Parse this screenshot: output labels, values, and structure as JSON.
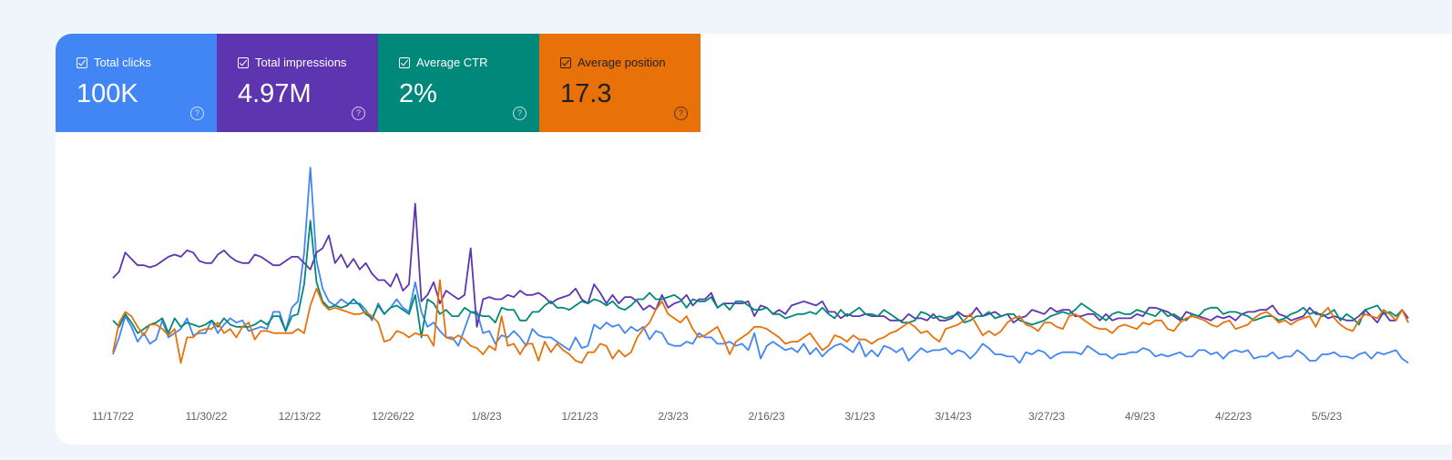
{
  "metrics": [
    {
      "label": "Total clicks",
      "value": "100K",
      "color": "#4285f4",
      "text_color": "#ffffff",
      "icon": "checkbox-checked-icon",
      "help_icon": "help-circle-icon",
      "help_glyph": "?"
    },
    {
      "label": "Total impressions",
      "value": "4.97M",
      "color": "#5e35b1",
      "text_color": "#ffffff",
      "icon": "checkbox-checked-icon",
      "help_icon": "help-circle-icon",
      "help_glyph": "?"
    },
    {
      "label": "Average CTR",
      "value": "2%",
      "color": "#00897b",
      "text_color": "#ffffff",
      "icon": "checkbox-checked-icon",
      "help_icon": "help-circle-icon",
      "help_glyph": "?"
    },
    {
      "label": "Average position",
      "value": "17.3",
      "color": "#e8710a",
      "text_color": "#202124",
      "icon": "checkbox-checked-icon",
      "help_icon": "help-circle-icon",
      "help_glyph": "?"
    }
  ],
  "chart_data": {
    "type": "line",
    "title": "",
    "xlabel": "",
    "ylabel": "",
    "grid": false,
    "x_tick_labels": [
      "11/17/22",
      "11/30/22",
      "12/13/22",
      "12/26/22",
      "1/8/23",
      "1/21/23",
      "2/3/23",
      "2/16/23",
      "3/1/23",
      "3/14/23",
      "3/27/23",
      "4/9/23",
      "4/22/23",
      "5/5/23"
    ],
    "x_range": [
      "11/17/22",
      "5/16/23"
    ],
    "y_range_normalized": [
      0,
      100
    ],
    "series": [
      {
        "metric": "Total clicks",
        "color": "#4285f4",
        "values": [
          12,
          20,
          30,
          25,
          18,
          22,
          17,
          19,
          28,
          20,
          22,
          24,
          29,
          21,
          22,
          22,
          28,
          22,
          26,
          29,
          27,
          28,
          23,
          24,
          25,
          24,
          32,
          32,
          23,
          34,
          37,
          60,
          100,
          56,
          43,
          37,
          35,
          38,
          36,
          36,
          36,
          33,
          28,
          36,
          31,
          34,
          38,
          34,
          32,
          46,
          32,
          25,
          27,
          23,
          20,
          20,
          16,
          24,
          32,
          32,
          22,
          23,
          17,
          21,
          20,
          23,
          20,
          16,
          24,
          21,
          20,
          20,
          18,
          16,
          14,
          20,
          15,
          16,
          26,
          24,
          27,
          25,
          26,
          22,
          25,
          23,
          25,
          19,
          23,
          22,
          17,
          16,
          16,
          18,
          17,
          22,
          20,
          20,
          17,
          17,
          18,
          16,
          17,
          14,
          22,
          10,
          16,
          18,
          16,
          14,
          15,
          13,
          17,
          12,
          15,
          11,
          14,
          16,
          17,
          15,
          13,
          18,
          11,
          14,
          11,
          16,
          15,
          13,
          15,
          9,
          12,
          15,
          13,
          14,
          14,
          15,
          12,
          14,
          13,
          10,
          13,
          17,
          15,
          12,
          12,
          11,
          11,
          8,
          13,
          12,
          14,
          13,
          10,
          12,
          13,
          13,
          13,
          12,
          16,
          14,
          12,
          12,
          10,
          12,
          12,
          13,
          13,
          15,
          14,
          11,
          12,
          11,
          12,
          13,
          11,
          11,
          14,
          14,
          12,
          13,
          10,
          13,
          14,
          13,
          14,
          10,
          11,
          11,
          13,
          10,
          11,
          11,
          14,
          12,
          9,
          9,
          12,
          12,
          13,
          11,
          11,
          10,
          12,
          13,
          10,
          13,
          12,
          13,
          14,
          10,
          8
        ]
      },
      {
        "metric": "Total impressions",
        "color": "#5e35b1",
        "values": [
          48,
          51,
          60,
          57,
          54,
          54,
          53,
          54,
          56,
          58,
          59,
          58,
          61,
          60,
          56,
          55,
          55,
          59,
          61,
          58,
          56,
          55,
          55,
          59,
          58,
          56,
          54,
          54,
          56,
          58,
          58,
          55,
          52,
          60,
          62,
          68,
          55,
          59,
          53,
          57,
          52,
          55,
          50,
          47,
          47,
          44,
          50,
          42,
          45,
          83,
          37,
          40,
          46,
          36,
          42,
          40,
          38,
          40,
          62,
          25,
          38,
          39,
          38,
          38,
          40,
          39,
          42,
          40,
          40,
          41,
          39,
          36,
          38,
          39,
          40,
          43,
          38,
          36,
          45,
          41,
          36,
          40,
          36,
          39,
          39,
          37,
          33,
          35,
          33,
          40,
          34,
          36,
          37,
          40,
          35,
          38,
          38,
          41,
          34,
          36,
          36,
          36,
          36,
          37,
          30,
          35,
          34,
          31,
          33,
          31,
          35,
          36,
          37,
          36,
          35,
          37,
          32,
          32,
          29,
          31,
          30,
          30,
          31,
          30,
          30,
          30,
          28,
          28,
          28,
          31,
          29,
          29,
          28,
          31,
          28,
          28,
          29,
          32,
          30,
          30,
          34,
          30,
          31,
          32,
          30,
          31,
          27,
          29,
          30,
          33,
          32,
          31,
          34,
          32,
          33,
          33,
          30,
          30,
          31,
          31,
          28,
          31,
          28,
          29,
          29,
          29,
          31,
          30,
          34,
          34,
          33,
          32,
          30,
          28,
          32,
          31,
          30,
          29,
          28,
          30,
          29,
          30,
          28,
          31,
          32,
          32,
          33,
          33,
          35,
          31,
          30,
          28,
          29,
          30,
          34,
          31,
          31,
          29,
          30,
          29,
          28,
          28,
          30,
          33,
          30,
          27,
          32,
          28,
          28,
          33,
          29
        ]
      },
      {
        "metric": "Average CTR",
        "color": "#00897b",
        "values": [
          28,
          25,
          31,
          27,
          22,
          24,
          26,
          27,
          29,
          22,
          29,
          25,
          27,
          26,
          25,
          26,
          28,
          25,
          29,
          26,
          25,
          25,
          25,
          26,
          28,
          26,
          30,
          30,
          23,
          30,
          31,
          45,
          75,
          46,
          37,
          34,
          35,
          34,
          35,
          38,
          35,
          31,
          29,
          35,
          31,
          34,
          35,
          33,
          31,
          40,
          20,
          38,
          36,
          31,
          33,
          30,
          30,
          34,
          32,
          31,
          30,
          30,
          27,
          34,
          33,
          33,
          28,
          28,
          32,
          32,
          35,
          37,
          34,
          34,
          33,
          35,
          37,
          36,
          38,
          37,
          35,
          37,
          34,
          33,
          35,
          38,
          38,
          41,
          38,
          38,
          39,
          40,
          38,
          34,
          38,
          37,
          37,
          39,
          34,
          36,
          33,
          37,
          37,
          35,
          33,
          33,
          34,
          31,
          31,
          29,
          30,
          31,
          31,
          32,
          31,
          34,
          31,
          29,
          33,
          30,
          32,
          34,
          31,
          31,
          30,
          33,
          31,
          29,
          27,
          27,
          28,
          32,
          31,
          29,
          30,
          29,
          30,
          31,
          27,
          28,
          30,
          30,
          32,
          29,
          30,
          31,
          31,
          28,
          27,
          26,
          27,
          28,
          30,
          31,
          32,
          31,
          33,
          36,
          34,
          32,
          30,
          28,
          31,
          32,
          31,
          31,
          33,
          32,
          31,
          30,
          33,
          30,
          31,
          29,
          28,
          31,
          30,
          33,
          34,
          34,
          31,
          32,
          32,
          31,
          30,
          28,
          29,
          30,
          30,
          28,
          29,
          31,
          32,
          34,
          31,
          32,
          30,
          31,
          33,
          28,
          31,
          29,
          26,
          33,
          34,
          35,
          31,
          32,
          30,
          33,
          27
        ]
      },
      {
        "metric": "Average position",
        "color": "#e8710a",
        "values": [
          13,
          27,
          32,
          30,
          25,
          21,
          26,
          26,
          24,
          21,
          24,
          8,
          20,
          20,
          23,
          24,
          24,
          27,
          22,
          24,
          20,
          25,
          27,
          19,
          23,
          23,
          22,
          22,
          22,
          22,
          24,
          22,
          35,
          43,
          36,
          33,
          34,
          33,
          32,
          31,
          31,
          32,
          30,
          27,
          18,
          19,
          23,
          22,
          20,
          22,
          21,
          21,
          16,
          47,
          20,
          19,
          21,
          19,
          16,
          15,
          12,
          16,
          14,
          30,
          16,
          17,
          12,
          17,
          17,
          9,
          18,
          13,
          17,
          14,
          12,
          9,
          8,
          13,
          13,
          17,
          16,
          10,
          14,
          11,
          13,
          20,
          24,
          27,
          33,
          37,
          31,
          29,
          27,
          30,
          24,
          20,
          21,
          23,
          25,
          19,
          12,
          18,
          20,
          22,
          25,
          25,
          24,
          22,
          20,
          17,
          18,
          18,
          20,
          22,
          18,
          14,
          16,
          21,
          20,
          18,
          21,
          19,
          19,
          17,
          19,
          20,
          22,
          23,
          25,
          27,
          25,
          22,
          23,
          20,
          18,
          24,
          25,
          26,
          28,
          31,
          26,
          21,
          23,
          21,
          23,
          27,
          29,
          30,
          26,
          25,
          23,
          27,
          27,
          25,
          24,
          30,
          31,
          29,
          27,
          25,
          24,
          24,
          22,
          25,
          26,
          25,
          24,
          27,
          26,
          28,
          28,
          24,
          23,
          27,
          29,
          30,
          29,
          28,
          26,
          25,
          27,
          28,
          24,
          25,
          26,
          29,
          31,
          32,
          30,
          27,
          28,
          26,
          28,
          29,
          30,
          25,
          31,
          34,
          29,
          26,
          24,
          23,
          28,
          31,
          30,
          29,
          33,
          31,
          28,
          33,
          27
        ]
      }
    ]
  }
}
